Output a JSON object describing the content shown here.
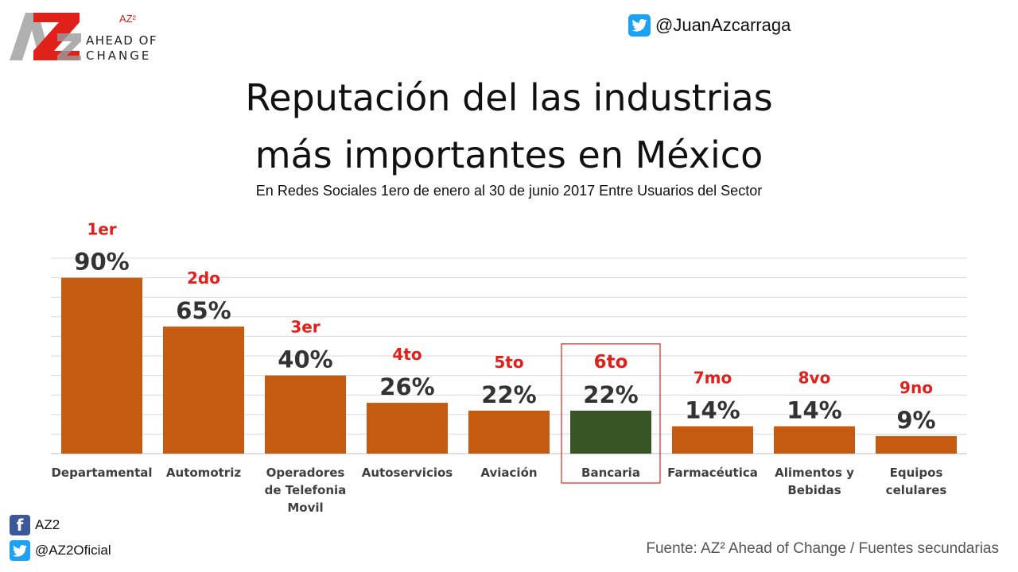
{
  "logo": {
    "superscript": "AZ²",
    "line1": "AHEAD OF",
    "line2": "CHANGE",
    "mark_icon": "az2-logo-icon"
  },
  "header": {
    "twitter_handle": "@JuanAzcarraga",
    "twitter_icon": "twitter-icon"
  },
  "title_line1": "Reputación del las industrias",
  "title_line2": "más importantes en México",
  "subtitle": "En Redes Sociales 1ero de enero al 30 de junio 2017 Entre Usuarios del Sector",
  "footer": {
    "facebook_label": "AZ2",
    "twitter_label": "@AZ2Oficial",
    "source": "Fuente: AZ² Ahead of Change / Fuentes secundarias"
  },
  "colors": {
    "bar": "#c55a11",
    "highlight_bar": "#375623",
    "rank": "#e0201b",
    "value_label": "#333333",
    "highlight_box": "#e0201b",
    "grid": "#d9d9d9"
  },
  "chart_data": {
    "type": "bar",
    "title": "Reputación del las industrias más importantes en México",
    "subtitle": "En Redes Sociales 1ero de enero al 30 de junio 2017 Entre Usuarios del Sector",
    "categories": [
      [
        "Departamental"
      ],
      [
        "Automotriz"
      ],
      [
        "Operadores",
        "de Telefonia",
        "Movil"
      ],
      [
        "Autoservicios"
      ],
      [
        "Aviación"
      ],
      [
        "Bancaria"
      ],
      [
        "Farmacéutica"
      ],
      [
        "Alimentos y",
        "Bebidas"
      ],
      [
        "Equipos",
        "celulares"
      ]
    ],
    "values": [
      90,
      65,
      40,
      26,
      22,
      22,
      14,
      14,
      9
    ],
    "value_labels": [
      "90%",
      "65%",
      "40%",
      "26%",
      "22%",
      "22%",
      "14%",
      "14%",
      "9%"
    ],
    "ranks": [
      "1er",
      "2do",
      "3er",
      "4to",
      "5to",
      "6to",
      "7mo",
      "8vo",
      "9no"
    ],
    "highlight_index": 5,
    "ylim": [
      0,
      100
    ],
    "grid": true,
    "xlabel": "",
    "ylabel": ""
  }
}
